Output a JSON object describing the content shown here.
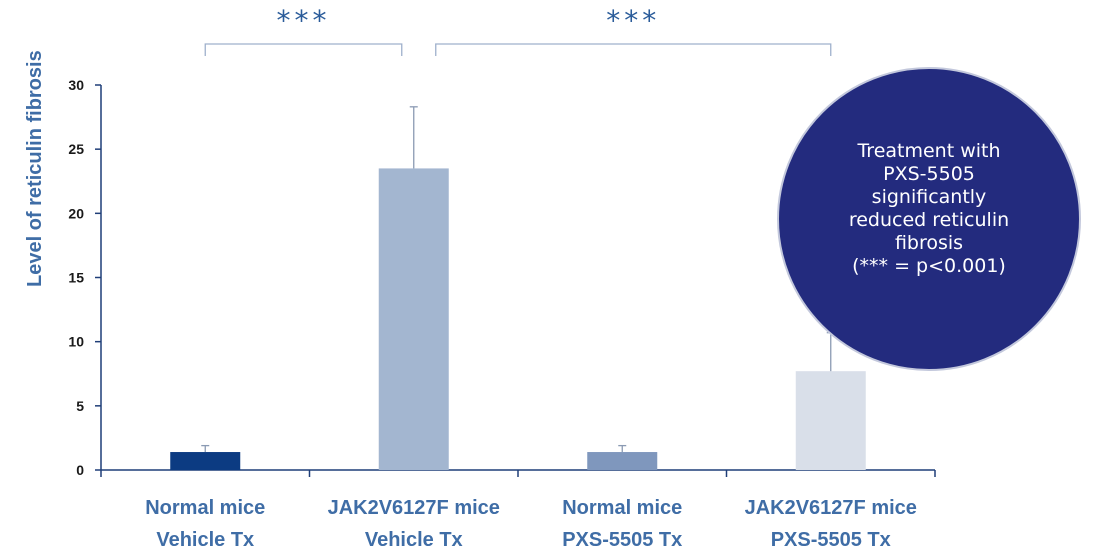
{
  "chart_data": {
    "type": "bar",
    "categories": [
      [
        "Normal mice",
        "Vehicle Tx"
      ],
      [
        "JAK2V6127F mice",
        "Vehicle Tx"
      ],
      [
        "Normal mice",
        "PXS-5505 Tx"
      ],
      [
        "JAK2V6127F mice",
        "PXS-5505 Tx"
      ]
    ],
    "values": [
      1.4,
      23.5,
      1.4,
      7.7
    ],
    "error_plus": [
      0.5,
      4.8,
      0.5,
      3.0
    ],
    "bar_colors": [
      "#0c3b82",
      "#a3b6d0",
      "#7f97bd",
      "#d9dfe9"
    ],
    "ylabel": "Level of reticulin fibrosis",
    "ylim": [
      0,
      30
    ],
    "yticks": [
      0,
      5,
      10,
      15,
      20,
      25,
      30
    ],
    "grid": false,
    "significance": [
      {
        "from": 0,
        "to": 1,
        "label": "***"
      },
      {
        "from": 1,
        "to": 3,
        "label": "***"
      }
    ],
    "callout_lines": [
      "Treatment with",
      "PXS-5505",
      "significantly",
      "reduced reticulin",
      "fibrosis",
      "(*** = p<0.001)"
    ]
  },
  "colors": {
    "axis": "#1f3e78",
    "text": "#3f6da6",
    "callout_fill": "#232b7e"
  }
}
